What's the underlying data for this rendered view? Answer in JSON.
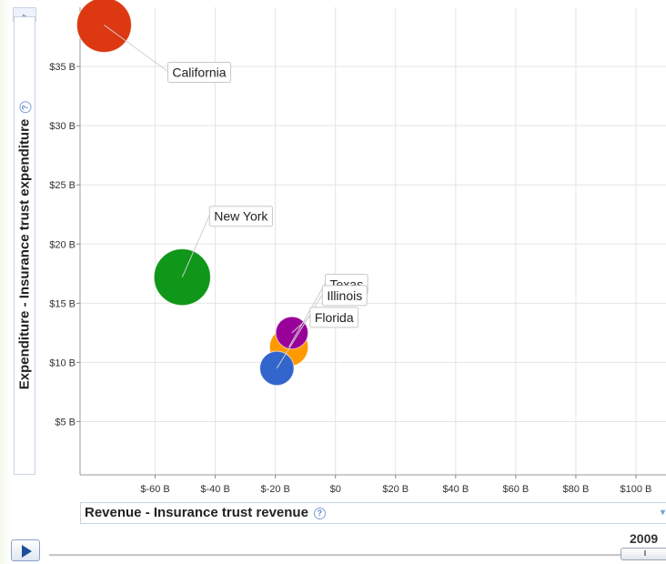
{
  "chart_data": {
    "type": "scatter",
    "xlabel": "Revenue - Insurance trust revenue",
    "ylabel": "Expenditure - Insurance trust expenditure",
    "xlim": [
      -85,
      110
    ],
    "ylim": [
      0.5,
      40
    ],
    "x_ticks": [
      {
        "value": -60,
        "label": "$-60 B"
      },
      {
        "value": -40,
        "label": "$-40 B"
      },
      {
        "value": -20,
        "label": "$-20 B"
      },
      {
        "value": 0,
        "label": "$0"
      },
      {
        "value": 20,
        "label": "$20 B"
      },
      {
        "value": 40,
        "label": "$40 B"
      },
      {
        "value": 60,
        "label": "$60 B"
      },
      {
        "value": 80,
        "label": "$80 B"
      },
      {
        "value": 100,
        "label": "$100 B"
      }
    ],
    "y_ticks": [
      {
        "value": 5,
        "label": "$5 B"
      },
      {
        "value": 10,
        "label": "$10 B"
      },
      {
        "value": 15,
        "label": "$15 B"
      },
      {
        "value": 20,
        "label": "$20 B"
      },
      {
        "value": 25,
        "label": "$25 B"
      },
      {
        "value": 30,
        "label": "$30 B"
      },
      {
        "value": 35,
        "label": "$35 B"
      }
    ],
    "grid": true,
    "year": "2009",
    "points": [
      {
        "name": "California",
        "x": -77,
        "y": 38.5,
        "size": 1.0,
        "color": "#dc3912",
        "label": "California"
      },
      {
        "name": "New York",
        "x": -51,
        "y": 17.2,
        "size": 1.07,
        "color": "#109618",
        "label": "New York"
      },
      {
        "name": "Texas",
        "x": -15.5,
        "y": 11.3,
        "size": 0.5,
        "color": "#ff9900",
        "label": "Texas"
      },
      {
        "name": "Illinois",
        "x": -19.5,
        "y": 9.5,
        "size": 0.39,
        "color": "#3366cc",
        "label": "Illinois"
      },
      {
        "name": "Florida",
        "x": -14.5,
        "y": 12.5,
        "size": 0.35,
        "color": "#990099",
        "label": "Florida"
      }
    ]
  }
}
